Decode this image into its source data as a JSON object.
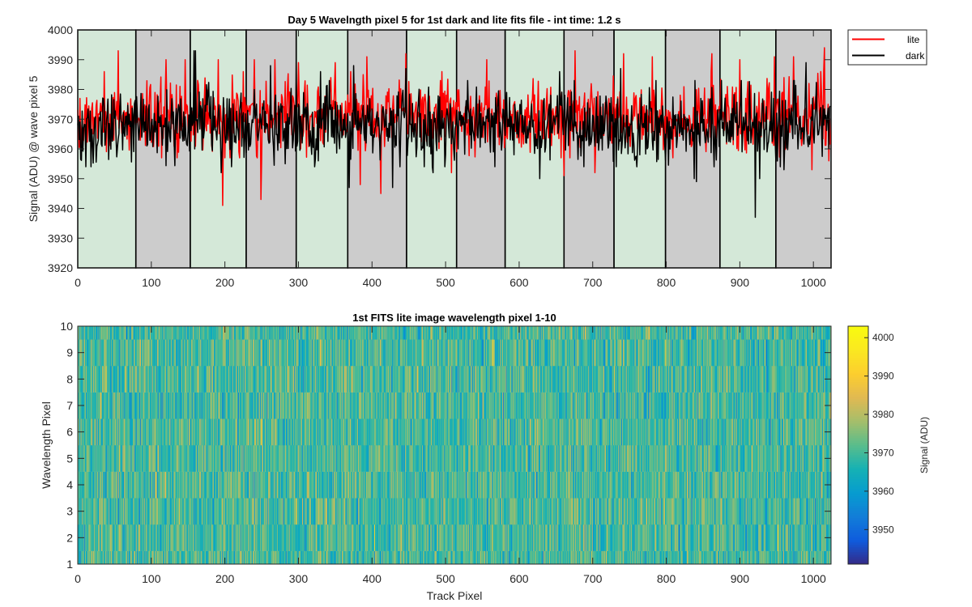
{
  "chart_data": [
    {
      "type": "line",
      "title": "Day 5 Wavelngth pixel 5 for 1st dark and lite fits file - int time: 1.2 s",
      "xlabel": "",
      "ylabel": "Signal (ADU) @ wave pixel 5",
      "xlim": [
        0,
        1024
      ],
      "ylim": [
        3920,
        4000
      ],
      "xticks": [
        "0",
        "100",
        "200",
        "300",
        "400",
        "500",
        "600",
        "700",
        "800",
        "900",
        "1000"
      ],
      "yticks": [
        "3920",
        "3930",
        "3940",
        "3950",
        "3960",
        "3970",
        "3980",
        "3990",
        "4000"
      ],
      "legend": {
        "position": "outside-top-right",
        "entries": [
          "lite",
          "dark"
        ]
      },
      "colors": {
        "lite": "#ff0000",
        "dark": "#000000",
        "band_light": "#d4e8d8",
        "band_dark": "#cccccc",
        "band_edge": "#000000"
      },
      "bands": [
        {
          "x0": 0,
          "x1": 79,
          "shade": "light"
        },
        {
          "x0": 79,
          "x1": 153,
          "shade": "dark"
        },
        {
          "x0": 153,
          "x1": 229,
          "shade": "light"
        },
        {
          "x0": 229,
          "x1": 297,
          "shade": "dark"
        },
        {
          "x0": 297,
          "x1": 367,
          "shade": "light"
        },
        {
          "x0": 367,
          "x1": 447,
          "shade": "dark"
        },
        {
          "x0": 447,
          "x1": 515,
          "shade": "light"
        },
        {
          "x0": 515,
          "x1": 581,
          "shade": "dark"
        },
        {
          "x0": 581,
          "x1": 661,
          "shade": "light"
        },
        {
          "x0": 661,
          "x1": 729,
          "shade": "dark"
        },
        {
          "x0": 729,
          "x1": 799,
          "shade": "light"
        },
        {
          "x0": 799,
          "x1": 873,
          "shade": "dark"
        },
        {
          "x0": 873,
          "x1": 949,
          "shade": "light"
        },
        {
          "x0": 949,
          "x1": 1024,
          "shade": "dark"
        }
      ],
      "series": [
        {
          "name": "lite",
          "approx_mean": 3971,
          "approx_std": 6,
          "x": [
            55,
            120,
            146,
            191,
            197,
            240,
            249,
            268,
            300,
            350,
            384,
            393,
            412,
            446,
            508,
            556,
            661,
            676,
            703,
            742,
            781,
            862,
            900,
            947,
            973,
            998,
            1015,
            1021
          ],
          "values": [
            3993,
            3990,
            3990,
            3990,
            3941,
            3990,
            3943,
            3990,
            3989,
            3989,
            3948,
            3991,
            3945,
            3992,
            3952,
            3990,
            3951,
            3993,
            3952,
            3992,
            3991,
            3992,
            3990,
            3991,
            3991,
            3953,
            3994,
            3956
          ]
        },
        {
          "name": "dark",
          "approx_mean": 3968,
          "approx_std": 6,
          "x": [
            158,
            160,
            195,
            262,
            297,
            330,
            369,
            375,
            428,
            446,
            483,
            628,
            655,
            738,
            838,
            841,
            921,
            927,
            960,
            990
          ],
          "values": [
            3993,
            3993,
            3952,
            3988,
            3989,
            3986,
            3947,
            3988,
            3947,
            3987,
            3952,
            3950,
            3986,
            3987,
            3950,
            3949,
            3937,
            3950,
            3953,
            3989
          ]
        }
      ]
    },
    {
      "type": "heatmap",
      "title": "1st FITS lite image wavelength pixel 1-10",
      "xlabel": "Track Pixel",
      "ylabel": "Wavelength Pixel",
      "xlim": [
        0,
        1024
      ],
      "ylim": [
        1,
        10
      ],
      "xticks": [
        "0",
        "100",
        "200",
        "300",
        "400",
        "500",
        "600",
        "700",
        "800",
        "900",
        "1000"
      ],
      "yticks": [
        "1",
        "2",
        "3",
        "4",
        "5",
        "6",
        "7",
        "8",
        "9",
        "10"
      ],
      "rows": 10,
      "columns": 1024,
      "approx_mean": 3970,
      "approx_std": 6,
      "colorbar": {
        "label": "Signal (ADU)",
        "range": [
          3941,
          4003
        ],
        "ticks": [
          "3950",
          "3960",
          "3970",
          "3980",
          "3990",
          "4000"
        ],
        "colormap": "parula"
      }
    }
  ]
}
